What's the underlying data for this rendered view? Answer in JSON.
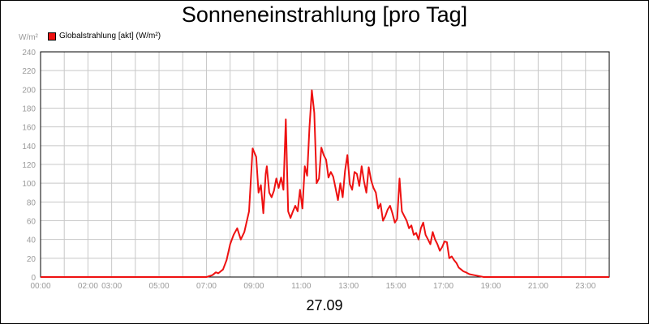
{
  "chart_data": {
    "type": "line",
    "title": "Sonneneinstrahlung [pro Tag]",
    "unit_label": "W/m²",
    "legend": "Globalstrahlung [akt] (W/m²)",
    "date_label": "27.09",
    "line_color": "#ee1111",
    "grid": true,
    "ylim": [
      0,
      240
    ],
    "y_ticks": [
      "0",
      "20",
      "40",
      "60",
      "80",
      "100",
      "120",
      "140",
      "160",
      "180",
      "200",
      "220",
      "240"
    ],
    "x_ticks": [
      {
        "h": 0,
        "label": "00:00"
      },
      {
        "h": 2,
        "label": "02:00"
      },
      {
        "h": 3,
        "label": "03:00"
      },
      {
        "h": 5,
        "label": "05:00"
      },
      {
        "h": 7,
        "label": "07:00"
      },
      {
        "h": 9,
        "label": "09:00"
      },
      {
        "h": 11,
        "label": "11:00"
      },
      {
        "h": 13,
        "label": "13:00"
      },
      {
        "h": 15,
        "label": "15:00"
      },
      {
        "h": 17,
        "label": "17:00"
      },
      {
        "h": 19,
        "label": "19:00"
      },
      {
        "h": 21,
        "label": "21:00"
      },
      {
        "h": 23,
        "label": "23:00"
      }
    ],
    "xlim_hours": [
      0,
      24
    ],
    "series": [
      {
        "x": [
          0,
          7.0,
          7.25,
          7.4,
          7.5,
          7.7,
          7.85,
          8.0,
          8.15,
          8.3,
          8.45,
          8.6,
          8.8,
          8.95,
          9.1,
          9.2,
          9.3,
          9.4,
          9.5,
          9.55,
          9.65,
          9.75,
          9.85,
          9.95,
          10.05,
          10.15,
          10.25,
          10.35,
          10.45,
          10.55,
          10.65,
          10.75,
          10.85,
          10.95,
          11.05,
          11.15,
          11.25,
          11.35,
          11.45,
          11.55,
          11.65,
          11.75,
          11.85,
          11.95,
          12.05,
          12.15,
          12.25,
          12.35,
          12.45,
          12.55,
          12.65,
          12.75,
          12.85,
          12.95,
          13.05,
          13.15,
          13.25,
          13.35,
          13.45,
          13.55,
          13.65,
          13.75,
          13.85,
          13.95,
          14.05,
          14.15,
          14.25,
          14.35,
          14.45,
          14.55,
          14.65,
          14.75,
          14.85,
          14.95,
          15.05,
          15.15,
          15.25,
          15.35,
          15.45,
          15.55,
          15.65,
          15.75,
          15.85,
          15.95,
          16.05,
          16.15,
          16.25,
          16.35,
          16.45,
          16.55,
          16.65,
          16.75,
          16.85,
          16.95,
          17.05,
          17.15,
          17.25,
          17.35,
          17.45,
          17.55,
          17.65,
          17.75,
          17.85,
          17.95,
          18.1,
          18.3,
          18.5,
          18.7,
          18.9,
          19.1,
          19.3,
          19.5,
          19.7,
          24
        ],
        "y": [
          0,
          0,
          2,
          5,
          4,
          8,
          18,
          35,
          45,
          52,
          40,
          48,
          70,
          137,
          128,
          90,
          98,
          68,
          110,
          118,
          90,
          85,
          92,
          105,
          95,
          106,
          93,
          168,
          70,
          63,
          70,
          76,
          70,
          93,
          73,
          118,
          108,
          160,
          199,
          175,
          100,
          105,
          138,
          130,
          125,
          106,
          112,
          107,
          95,
          82,
          100,
          85,
          113,
          130,
          99,
          93,
          112,
          110,
          97,
          118,
          102,
          90,
          117,
          103,
          95,
          90,
          73,
          78,
          60,
          65,
          72,
          76,
          68,
          58,
          62,
          105,
          70,
          65,
          60,
          52,
          55,
          45,
          47,
          40,
          52,
          58,
          45,
          40,
          35,
          48,
          40,
          35,
          28,
          32,
          38,
          37,
          20,
          22,
          18,
          15,
          10,
          8,
          6,
          5,
          3,
          2,
          1,
          0,
          0,
          0,
          0,
          0,
          0,
          0
        ]
      }
    ]
  }
}
